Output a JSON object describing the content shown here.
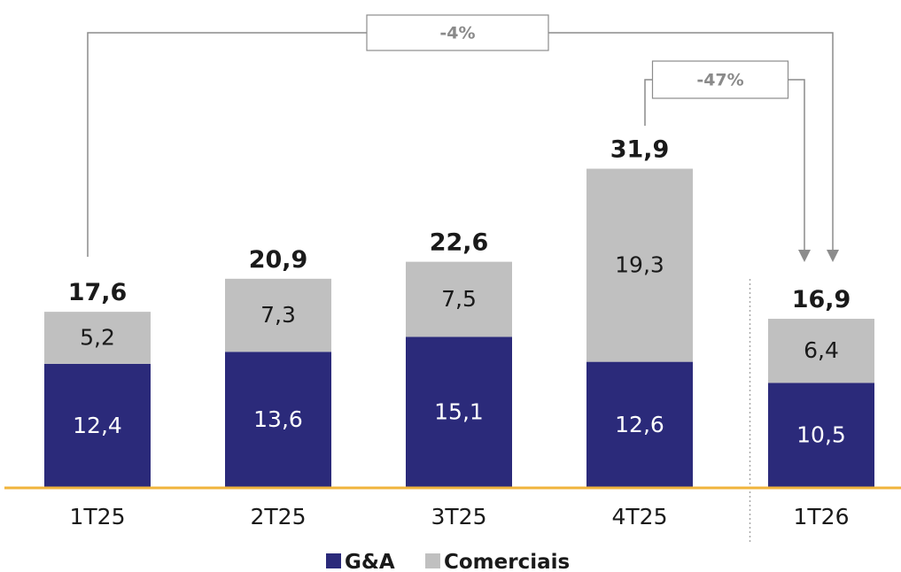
{
  "colors": {
    "ga": "#2b2a7a",
    "comerciais": "#c0c0c0",
    "baseline": "#f0b43c",
    "connector": "#8c8c8c",
    "separator": "#a8a8a8",
    "change_text": "#8a8a8a"
  },
  "chart_data": {
    "type": "bar",
    "stacked": true,
    "categories": [
      "1T25",
      "2T25",
      "3T25",
      "4T25",
      "1T26"
    ],
    "series": [
      {
        "name": "G&A",
        "values": [
          12.4,
          13.6,
          15.1,
          12.6,
          10.5
        ],
        "labels": [
          "12,4",
          "13,6",
          "15,1",
          "12,6",
          "10,5"
        ]
      },
      {
        "name": "Comerciais",
        "values": [
          5.2,
          7.3,
          7.5,
          19.3,
          6.4
        ],
        "labels": [
          "5,2",
          "7,3",
          "7,5",
          "19,3",
          "6,4"
        ]
      }
    ],
    "totals": [
      17.6,
      20.9,
      22.6,
      31.9,
      16.9
    ],
    "total_labels": [
      "17,6",
      "20,9",
      "22,6",
      "31,9",
      "16,9"
    ],
    "ylim": [
      0,
      35
    ],
    "grid": false,
    "legend_position": "bottom",
    "annotations": [
      {
        "label": "-4%",
        "from": "1T25",
        "to": "1T26"
      },
      {
        "label": "-47%",
        "from": "4T25",
        "to": "1T26"
      }
    ],
    "separator_before": "1T26"
  }
}
